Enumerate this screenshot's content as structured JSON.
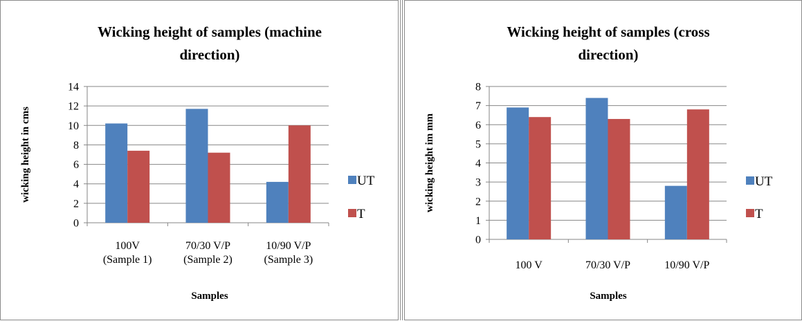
{
  "chart_data": [
    {
      "type": "bar",
      "title_lines": [
        "Wicking height of samples (machine",
        "direction)"
      ],
      "xlabel": "Samples",
      "ylabel": "wicking height in cms",
      "categories": [
        [
          "100V",
          "(Sample 1)"
        ],
        [
          "70/30 V/P",
          "(Sample 2)"
        ],
        [
          "10/90 V/P",
          "(Sample 3)"
        ]
      ],
      "ylim": [
        0,
        14
      ],
      "ytick_step": 2,
      "grid": true,
      "legend_position": "right",
      "series": [
        {
          "name": "UT",
          "color": "#4f81bd",
          "values": [
            10.2,
            11.7,
            4.2
          ]
        },
        {
          "name": "T",
          "color": "#c0504d",
          "values": [
            7.4,
            7.2,
            10.0
          ]
        }
      ]
    },
    {
      "type": "bar",
      "title_lines": [
        "Wicking height of samples (cross",
        "direction)"
      ],
      "xlabel": "Samples",
      "ylabel": "wicking height im mm",
      "categories": [
        [
          "100 V"
        ],
        [
          "70/30 V/P"
        ],
        [
          "10/90 V/P"
        ]
      ],
      "ylim": [
        0,
        8
      ],
      "ytick_step": 1,
      "grid": true,
      "legend_position": "right",
      "series": [
        {
          "name": "UT",
          "color": "#4f81bd",
          "values": [
            6.9,
            7.4,
            2.8
          ]
        },
        {
          "name": "T",
          "color": "#c0504d",
          "values": [
            6.4,
            6.3,
            6.8
          ]
        }
      ]
    }
  ]
}
